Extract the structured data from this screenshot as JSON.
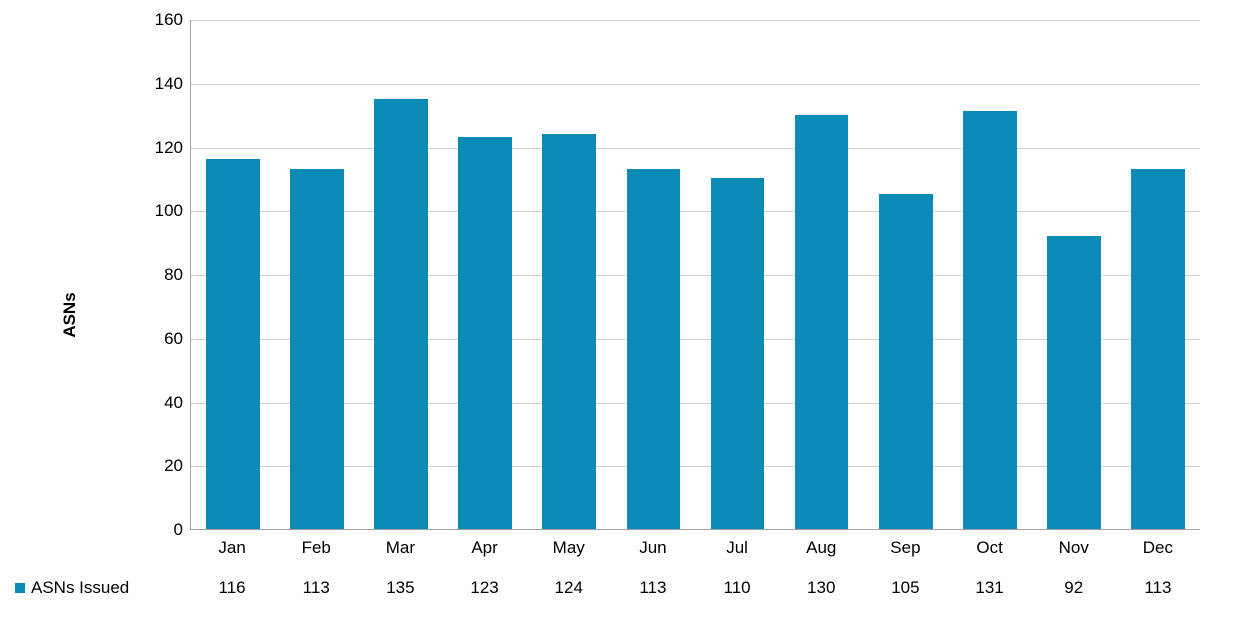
{
  "chart": {
    "type": "bar",
    "y_axis_title": "ASNs",
    "series_label": "ASNs Issued",
    "bar_color": "#0a8ab5",
    "background_color": "#ffffff",
    "grid_color": "#d0d0d0",
    "axis_color": "#a0a0a0",
    "text_color": "#000000",
    "label_fontsize": 17,
    "ytitle_fontsize": 17,
    "ylim": [
      0,
      160
    ],
    "ytick_step": 20,
    "yticks": [
      0,
      20,
      40,
      60,
      80,
      100,
      120,
      140,
      160
    ],
    "bar_width_ratio": 0.64,
    "categories": [
      "Jan",
      "Feb",
      "Mar",
      "Apr",
      "May",
      "Jun",
      "Jul",
      "Aug",
      "Sep",
      "Oct",
      "Nov",
      "Dec"
    ],
    "values": [
      116,
      113,
      135,
      123,
      124,
      113,
      110,
      130,
      105,
      131,
      92,
      113
    ]
  }
}
